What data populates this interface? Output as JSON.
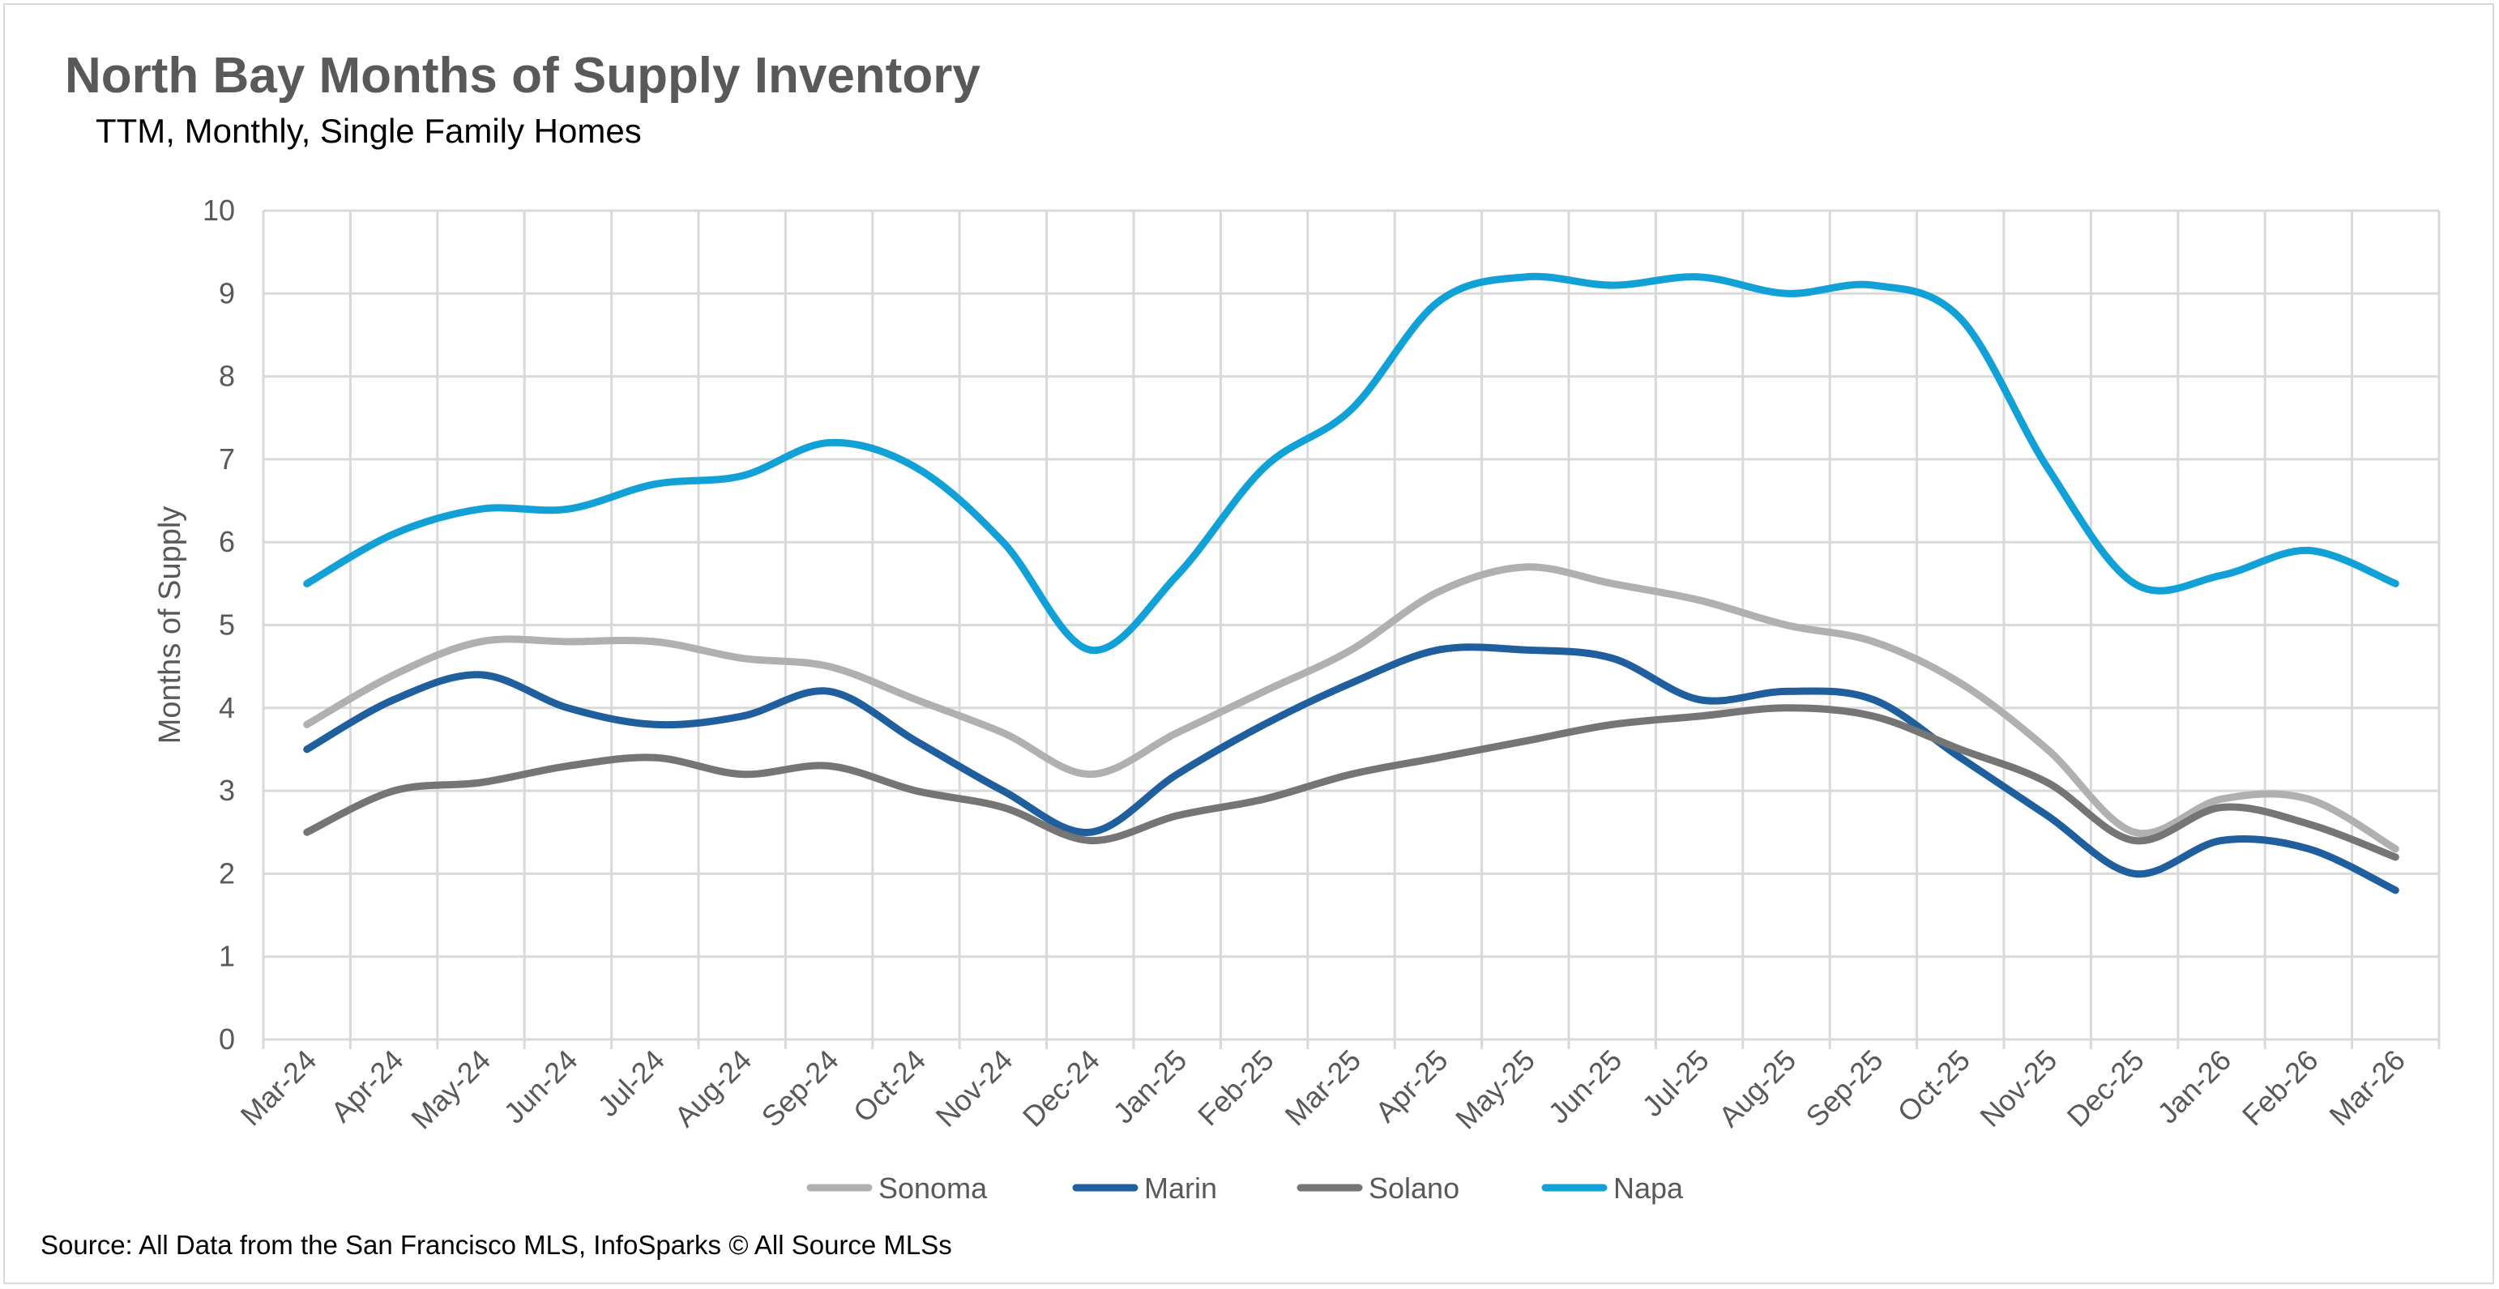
{
  "chart_data": {
    "type": "line",
    "title": "North Bay Months of Supply Inventory",
    "subtitle": "TTM, Monthly, Single Family Homes",
    "xlabel": "",
    "ylabel": "Months of Supply",
    "ylim": [
      0,
      10
    ],
    "yticks": [
      "0",
      "1",
      "2",
      "3",
      "4",
      "5",
      "6",
      "7",
      "8",
      "9",
      "10"
    ],
    "grid": true,
    "legend": "bottom",
    "categories": [
      "Mar-24",
      "Apr-24",
      "May-24",
      "Jun-24",
      "Jul-24",
      "Aug-24",
      "Sep-24",
      "Oct-24",
      "Nov-24",
      "Dec-24",
      "Jan-25",
      "Feb-25",
      "Mar-25",
      "Apr-25",
      "May-25",
      "Jun-25",
      "Jul-25",
      "Aug-25",
      "Sep-25",
      "Oct-25",
      "Nov-25",
      "Dec-25",
      "Jan-26",
      "Feb-26",
      "Mar-26"
    ],
    "series": [
      {
        "name": "Sonoma",
        "color": "#B0B0B0",
        "values": [
          3.8,
          4.4,
          4.8,
          4.8,
          4.8,
          4.6,
          4.5,
          4.1,
          3.7,
          3.2,
          3.7,
          4.2,
          4.7,
          5.4,
          5.7,
          5.5,
          5.3,
          5.0,
          4.8,
          4.3,
          3.5,
          2.5,
          2.9,
          2.9,
          2.3
        ]
      },
      {
        "name": "Marin",
        "color": "#1F5F9E",
        "values": [
          3.5,
          4.1,
          4.4,
          4.0,
          3.8,
          3.9,
          4.2,
          3.6,
          3.0,
          2.5,
          3.2,
          3.8,
          4.3,
          4.7,
          4.7,
          4.6,
          4.1,
          4.2,
          4.1,
          3.4,
          2.7,
          2.0,
          2.4,
          2.3,
          1.8
        ]
      },
      {
        "name": "Solano",
        "color": "#757575",
        "values": [
          2.5,
          3.0,
          3.1,
          3.3,
          3.4,
          3.2,
          3.3,
          3.0,
          2.8,
          2.4,
          2.7,
          2.9,
          3.2,
          3.4,
          3.6,
          3.8,
          3.9,
          4.0,
          3.9,
          3.5,
          3.1,
          2.4,
          2.8,
          2.6,
          2.2
        ]
      },
      {
        "name": "Napa",
        "color": "#12A1D6",
        "values": [
          5.5,
          6.1,
          6.4,
          6.4,
          6.7,
          6.8,
          7.2,
          6.9,
          6.0,
          4.7,
          5.6,
          6.9,
          7.6,
          8.9,
          9.2,
          9.1,
          9.2,
          9.0,
          9.1,
          8.7,
          6.9,
          5.5,
          5.6,
          5.9,
          5.5
        ]
      }
    ]
  },
  "source": "Source: All Data from the San Francisco MLS, InfoSparks © All Source MLSs"
}
